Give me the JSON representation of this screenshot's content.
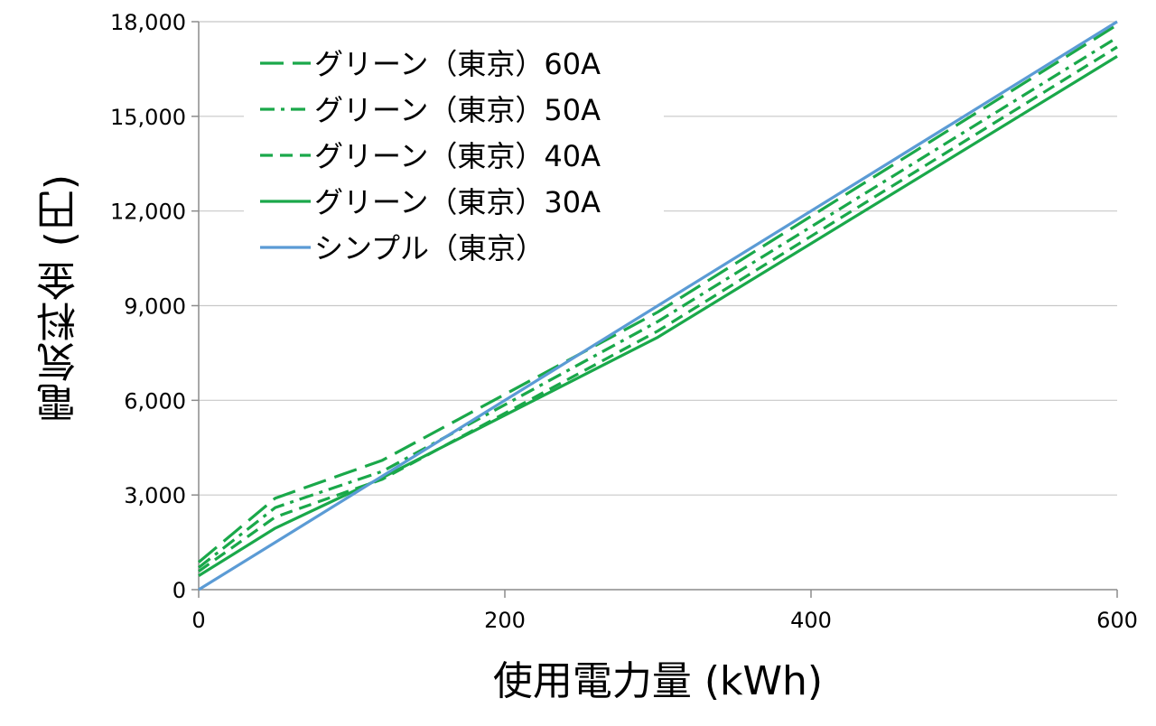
{
  "chart_data": {
    "type": "line",
    "xlabel": "使用電力量 (kWh)",
    "ylabel": "電気料金 (円)",
    "xlim": [
      0,
      600
    ],
    "ylim": [
      0,
      18000
    ],
    "xticks": [
      0,
      200,
      400,
      600
    ],
    "xtick_labels": [
      "0",
      "200",
      "400",
      "600"
    ],
    "yticks": [
      0,
      3000,
      6000,
      9000,
      12000,
      15000,
      18000
    ],
    "ytick_labels": [
      "0",
      "3,000",
      "6,000",
      "9,000",
      "12,000",
      "15,000",
      "18,000"
    ],
    "grid": "horizontal",
    "legend_position": "top-left",
    "x": [
      0,
      50,
      120,
      300,
      600
    ],
    "series": [
      {
        "name": "グリーン（東京）60A",
        "color": "#1aa84a",
        "dash": "long-dash",
        "values": [
          870,
          2900,
          4100,
          8800,
          17900
        ]
      },
      {
        "name": "グリーン（東京）50A",
        "color": "#1aa84a",
        "dash": "dash-dot",
        "values": [
          700,
          2600,
          3750,
          8500,
          17500
        ]
      },
      {
        "name": "グリーン（東京）40A",
        "color": "#1aa84a",
        "dash": "short-dash",
        "values": [
          580,
          2300,
          3500,
          8200,
          17200
        ]
      },
      {
        "name": "グリーン（東京）30A",
        "color": "#1aa84a",
        "dash": "solid",
        "values": [
          440,
          1950,
          3550,
          8000,
          16900
        ]
      },
      {
        "name": "シンプル（東京）",
        "color": "#5b9bd5",
        "dash": "solid",
        "values": [
          0,
          1500,
          3600,
          9000,
          18000
        ]
      }
    ]
  }
}
